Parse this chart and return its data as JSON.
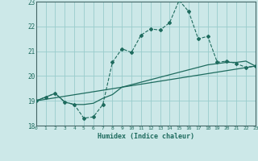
{
  "xlabel": "Humidex (Indice chaleur)",
  "xlim": [
    0,
    23
  ],
  "ylim": [
    18,
    23
  ],
  "yticks": [
    18,
    19,
    20,
    21,
    22,
    23
  ],
  "xticks": [
    0,
    1,
    2,
    3,
    4,
    5,
    6,
    7,
    8,
    9,
    10,
    11,
    12,
    13,
    14,
    15,
    16,
    17,
    18,
    19,
    20,
    21,
    22,
    23
  ],
  "bg_color": "#cce8e8",
  "grid_color": "#99cccc",
  "line_color": "#1e6b5e",
  "line1_x": [
    0,
    1,
    2,
    3,
    4,
    5,
    6,
    7,
    8,
    9,
    10,
    11,
    12,
    13,
    14,
    15,
    16,
    17,
    18,
    19,
    20,
    21,
    22,
    23
  ],
  "line1_y": [
    19.0,
    19.15,
    19.3,
    18.95,
    18.85,
    18.3,
    18.35,
    18.85,
    20.55,
    21.1,
    20.95,
    21.65,
    21.9,
    21.85,
    22.15,
    23.05,
    22.6,
    21.5,
    21.6,
    20.55,
    20.6,
    20.5,
    20.35,
    20.4
  ],
  "line2_x": [
    0,
    1,
    2,
    3,
    4,
    5,
    6,
    7,
    8,
    9,
    10,
    11,
    12,
    13,
    14,
    15,
    16,
    17,
    18,
    19,
    20,
    21,
    22,
    23
  ],
  "line2_y": [
    19.0,
    19.15,
    19.3,
    18.95,
    18.85,
    18.85,
    18.9,
    19.1,
    19.25,
    19.55,
    19.65,
    19.75,
    19.85,
    19.95,
    20.05,
    20.15,
    20.25,
    20.35,
    20.45,
    20.5,
    20.55,
    20.55,
    20.6,
    20.4
  ],
  "line3_x": [
    0,
    23
  ],
  "line3_y": [
    19.0,
    20.4
  ]
}
